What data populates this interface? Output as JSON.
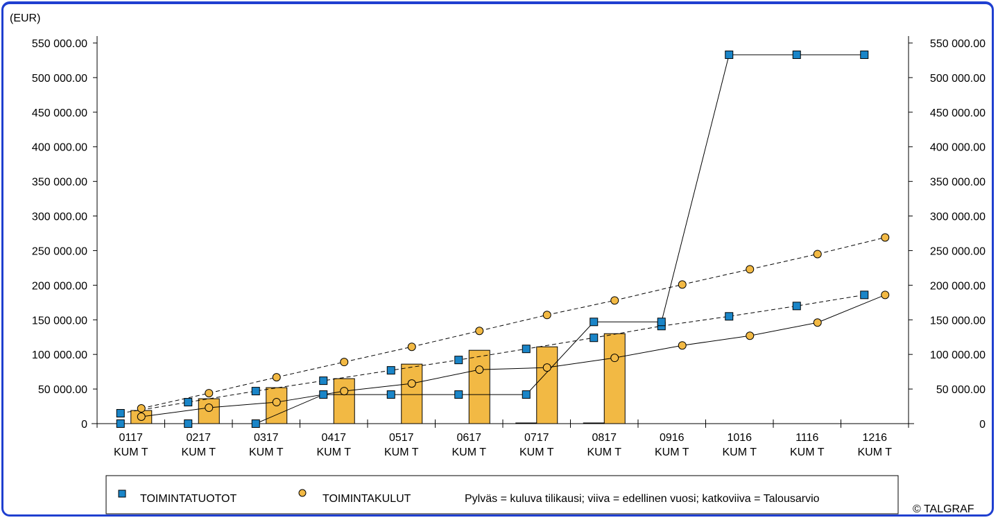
{
  "copyright": "© TALGRAF",
  "colors": {
    "frame": "#1f3fd0",
    "bar": "#f2b944",
    "square": "#1a85c8",
    "circle": "#f2b944"
  },
  "legend": {
    "series1": "TOIMINTATUOTOT",
    "series2": "TOIMINTAKULUT",
    "note": "Pylväs = kuluva tilikausi; viiva = edellinen vuosi; katkoviiva = Talousarvio"
  },
  "chart_data": {
    "type": "bar",
    "unit_label": "(EUR)",
    "categories": [
      [
        "0117",
        "KUM T"
      ],
      [
        "0217",
        "KUM T"
      ],
      [
        "0317",
        "KUM T"
      ],
      [
        "0417",
        "KUM T"
      ],
      [
        "0517",
        "KUM T"
      ],
      [
        "0617",
        "KUM T"
      ],
      [
        "0717",
        "KUM T"
      ],
      [
        "0817",
        "KUM T"
      ],
      [
        "0916",
        "KUM T"
      ],
      [
        "1016",
        "KUM T"
      ],
      [
        "1116",
        "KUM T"
      ],
      [
        "1216",
        "KUM T"
      ]
    ],
    "ylim": [
      0,
      550000
    ],
    "yticks": [
      0,
      50000,
      100000,
      150000,
      200000,
      250000,
      300000,
      350000,
      400000,
      450000,
      500000,
      550000
    ],
    "ytick_labels": [
      "0",
      "50 000.00",
      "100 000.00",
      "150 000.00",
      "200 000.00",
      "250 000.00",
      "300 000.00",
      "350 000.00",
      "400 000.00",
      "450 000.00",
      "500 000.00",
      "550 000.00"
    ],
    "y_axis_both_sides": true,
    "grid": false,
    "legend_position": "bottom",
    "series": [
      {
        "name": "TOIMINTATUOTOT",
        "kind": "bar_current",
        "values": [
          0,
          0,
          0,
          null,
          null,
          null,
          1000,
          1000,
          null,
          null,
          null,
          null
        ]
      },
      {
        "name": "TOIMINTAKULUT",
        "kind": "bar_current",
        "values": [
          19000,
          36000,
          52000,
          65000,
          86000,
          106000,
          111000,
          130000,
          null,
          null,
          null,
          null
        ]
      },
      {
        "name": "TOIMINTATUOTOT",
        "kind": "line_previous_year",
        "values": [
          0,
          0,
          0,
          42000,
          42000,
          42000,
          42000,
          147000,
          147000,
          533000,
          533000,
          533000
        ]
      },
      {
        "name": "TOIMINTAKULUT",
        "kind": "line_previous_year",
        "values": [
          10000,
          23000,
          31000,
          47000,
          58000,
          78000,
          81000,
          95000,
          113000,
          127000,
          146000,
          186000
        ]
      },
      {
        "name": "TOIMINTATUOTOT",
        "kind": "dashed_budget",
        "values": [
          15000,
          31000,
          47000,
          62000,
          77000,
          92000,
          108000,
          124000,
          141000,
          155000,
          170000,
          186000
        ]
      },
      {
        "name": "TOIMINTAKULUT",
        "kind": "dashed_budget",
        "values": [
          22000,
          44000,
          67000,
          89000,
          111000,
          134000,
          157000,
          178000,
          201000,
          223000,
          245000,
          269000
        ]
      }
    ]
  }
}
